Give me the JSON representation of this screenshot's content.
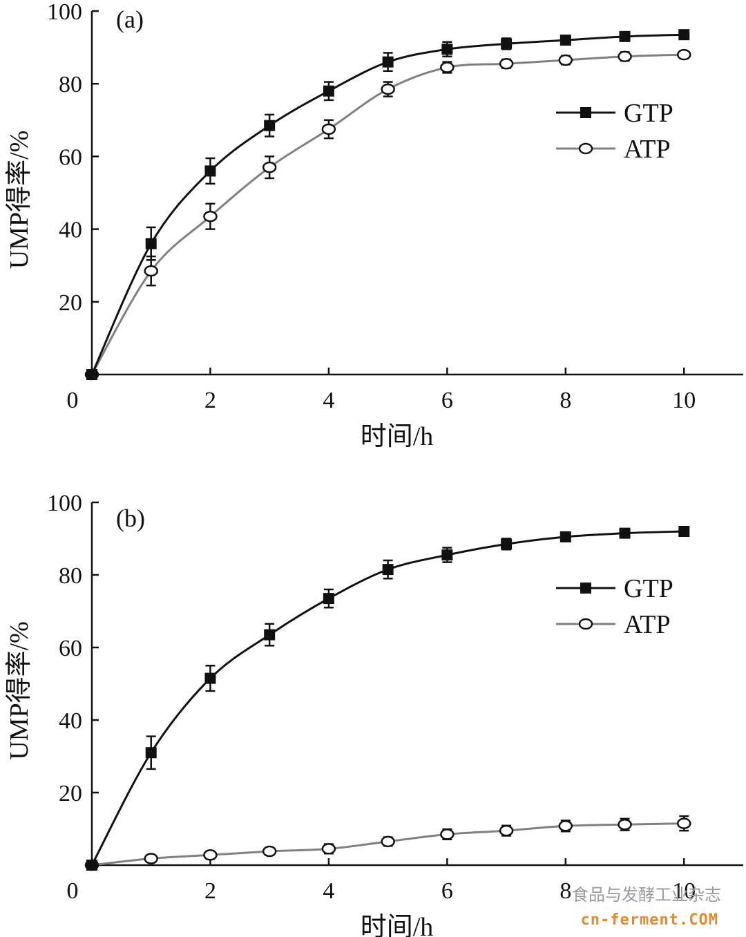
{
  "chart_data": [
    {
      "type": "line",
      "panel_label": "(a)",
      "xlabel": "时间/h",
      "ylabel": "UMP得率/%",
      "xlim": [
        0,
        11
      ],
      "ylim": [
        0,
        100
      ],
      "x_ticks": [
        "0",
        "2",
        "4",
        "6",
        "8",
        "10"
      ],
      "y_ticks": [
        "20",
        "40",
        "60",
        "80",
        "100"
      ],
      "legend_position": "right",
      "series": [
        {
          "name": "GTP",
          "marker": "filled-square",
          "color": "#111111",
          "x": [
            0,
            1,
            2,
            3,
            4,
            5,
            6,
            7,
            8,
            9,
            10
          ],
          "y": [
            0,
            36,
            56,
            68.5,
            78,
            86,
            89.5,
            91,
            92,
            93,
            93.5
          ],
          "error": [
            0,
            4.5,
            3.5,
            3,
            2.5,
            2.5,
            2,
            1.5,
            1.2,
            1.2,
            1
          ]
        },
        {
          "name": "ATP",
          "marker": "open-circle",
          "color": "#808080",
          "x": [
            0,
            1,
            2,
            3,
            4,
            5,
            6,
            7,
            8,
            9,
            10
          ],
          "y": [
            0,
            28.5,
            43.5,
            57,
            67.5,
            78.5,
            84.5,
            85.5,
            86.5,
            87.5,
            88
          ],
          "error": [
            0,
            4,
            3.5,
            3,
            2.5,
            2,
            1.5,
            1.2,
            1.2,
            1.2,
            1
          ]
        }
      ]
    },
    {
      "type": "line",
      "panel_label": "(b)",
      "xlabel": "时间/h",
      "ylabel": "UMP得率/%",
      "xlim": [
        0,
        11
      ],
      "ylim": [
        0,
        100
      ],
      "x_ticks": [
        "0",
        "2",
        "4",
        "6",
        "8",
        "10"
      ],
      "y_ticks": [
        "20",
        "40",
        "60",
        "80",
        "100"
      ],
      "legend_position": "right",
      "series": [
        {
          "name": "GTP",
          "marker": "filled-square",
          "color": "#111111",
          "x": [
            0,
            1,
            2,
            3,
            4,
            5,
            6,
            7,
            8,
            9,
            10
          ],
          "y": [
            0,
            31,
            51.5,
            63.5,
            73.5,
            81.5,
            85.5,
            88.5,
            90.5,
            91.5,
            92
          ],
          "error": [
            0,
            4.5,
            3.5,
            3,
            2.5,
            2.5,
            2,
            1.5,
            1.2,
            1.2,
            1
          ]
        },
        {
          "name": "ATP",
          "marker": "open-circle",
          "color": "#808080",
          "x": [
            0,
            1,
            2,
            3,
            4,
            5,
            6,
            7,
            8,
            9,
            10
          ],
          "y": [
            0,
            1.8,
            2.8,
            3.8,
            4.5,
            6.5,
            8.5,
            9.5,
            10.8,
            11.2,
            11.5
          ],
          "error": [
            0,
            1,
            1,
            1,
            1.3,
            1.2,
            1.4,
            1.4,
            1.5,
            1.6,
            2
          ]
        }
      ]
    }
  ],
  "watermark": {
    "text": "食品与发酵工业杂志",
    "url": "cn-ferment.COM"
  }
}
